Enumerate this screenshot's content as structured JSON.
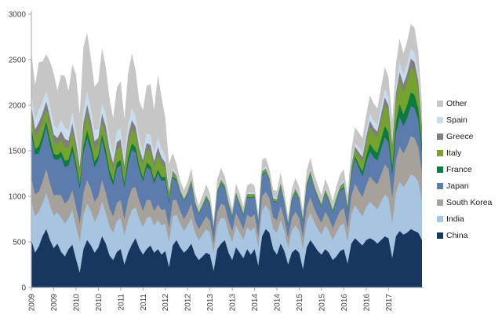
{
  "chart_data": {
    "type": "area",
    "stacked": true,
    "title": "",
    "xlabel": "",
    "ylabel": "",
    "ylim": [
      0,
      3000
    ],
    "y_ticks": [
      0,
      500,
      1000,
      1500,
      2000,
      2500,
      3000
    ],
    "x_tick_labels": [
      "2009",
      "2009",
      "2010",
      "2010",
      "2011",
      "2011",
      "2012",
      "2012",
      "2013",
      "2013",
      "2014",
      "2014",
      "2015",
      "2015",
      "2016",
      "2016",
      "2017"
    ],
    "x_tick_point_indices": [
      0,
      6,
      12,
      18,
      24,
      30,
      36,
      42,
      48,
      54,
      60,
      66,
      72,
      78,
      84,
      90,
      96
    ],
    "x_unit": "monthly points, Jan 2009 - Oct 2017",
    "grid": false,
    "legend_position": "right",
    "legend_labels_top_to_bottom": [
      "Other",
      "Spain",
      "Greece",
      "Italy",
      "France",
      "Japan",
      "South Korea",
      "India",
      "China"
    ],
    "series": [
      {
        "name": "China",
        "color": "#17375e",
        "values": [
          520,
          380,
          450,
          560,
          640,
          520,
          430,
          480,
          390,
          340,
          420,
          470,
          310,
          160,
          420,
          520,
          460,
          380,
          440,
          560,
          480,
          350,
          300,
          390,
          420,
          250,
          380,
          470,
          540,
          430,
          360,
          420,
          460,
          380,
          420,
          360,
          400,
          220,
          460,
          520,
          440,
          380,
          420,
          480,
          360,
          300,
          340,
          380,
          360,
          180,
          420,
          480,
          520,
          380,
          300,
          440,
          380,
          320,
          420,
          360,
          420,
          240,
          560,
          640,
          600,
          420,
          360,
          480,
          400,
          250,
          380,
          420,
          380,
          200,
          440,
          520,
          460,
          400,
          360,
          420,
          380,
          300,
          340,
          400,
          420,
          260,
          480,
          540,
          500,
          460,
          520,
          540,
          520,
          480,
          520,
          560,
          540,
          320,
          560,
          620,
          580,
          600,
          640,
          620,
          600,
          520
        ]
      },
      {
        "name": "India",
        "color": "#a7c5e0",
        "values": [
          420,
          400,
          380,
          360,
          400,
          380,
          360,
          340,
          380,
          360,
          340,
          380,
          360,
          340,
          380,
          400,
          380,
          340,
          360,
          380,
          340,
          320,
          300,
          340,
          340,
          320,
          360,
          380,
          340,
          320,
          300,
          340,
          320,
          300,
          320,
          320,
          300,
          280,
          320,
          280,
          260,
          240,
          260,
          280,
          240,
          220,
          240,
          260,
          240,
          200,
          260,
          280,
          240,
          220,
          200,
          240,
          220,
          200,
          240,
          260,
          240,
          200,
          280,
          260,
          240,
          220,
          240,
          260,
          220,
          180,
          240,
          260,
          240,
          220,
          280,
          300,
          260,
          240,
          220,
          260,
          240,
          220,
          260,
          280,
          280,
          240,
          320,
          360,
          340,
          320,
          360,
          400,
          380,
          380,
          420,
          460,
          440,
          380,
          480,
          540,
          520,
          560,
          600,
          600,
          560,
          430
        ]
      },
      {
        "name": "South Korea",
        "color": "#a6a29b",
        "values": [
          260,
          240,
          220,
          240,
          260,
          240,
          220,
          200,
          240,
          220,
          200,
          220,
          220,
          200,
          240,
          260,
          240,
          220,
          200,
          240,
          220,
          200,
          180,
          200,
          200,
          180,
          220,
          240,
          220,
          200,
          180,
          200,
          180,
          160,
          170,
          170,
          160,
          150,
          180,
          160,
          140,
          130,
          140,
          160,
          130,
          120,
          130,
          140,
          130,
          110,
          150,
          160,
          140,
          130,
          120,
          140,
          130,
          120,
          140,
          150,
          140,
          120,
          160,
          150,
          140,
          130,
          140,
          150,
          130,
          110,
          140,
          150,
          140,
          130,
          160,
          170,
          150,
          140,
          130,
          150,
          140,
          130,
          150,
          160,
          170,
          150,
          200,
          240,
          220,
          210,
          240,
          280,
          270,
          270,
          300,
          330,
          320,
          280,
          350,
          390,
          370,
          390,
          420,
          420,
          380,
          300
        ]
      },
      {
        "name": "Japan",
        "color": "#5b7cad",
        "values": [
          480,
          440,
          420,
          440,
          460,
          420,
          400,
          380,
          420,
          400,
          380,
          420,
          420,
          380,
          440,
          460,
          420,
          380,
          400,
          440,
          400,
          360,
          340,
          380,
          380,
          340,
          400,
          420,
          380,
          340,
          320,
          360,
          330,
          300,
          340,
          320,
          320,
          280,
          240,
          210,
          190,
          190,
          200,
          220,
          180,
          160,
          170,
          190,
          170,
          140,
          200,
          220,
          190,
          170,
          150,
          190,
          170,
          150,
          190,
          210,
          190,
          150,
          230,
          210,
          190,
          170,
          190,
          210,
          170,
          140,
          190,
          210,
          190,
          170,
          220,
          240,
          210,
          190,
          170,
          200,
          180,
          170,
          200,
          220,
          220,
          190,
          240,
          270,
          250,
          230,
          250,
          270,
          260,
          260,
          280,
          300,
          290,
          250,
          300,
          320,
          300,
          310,
          330,
          330,
          300,
          230
        ]
      },
      {
        "name": "France",
        "color": "#0d7a3e",
        "values": [
          70,
          60,
          80,
          70,
          60,
          70,
          60,
          50,
          60,
          70,
          60,
          70,
          60,
          50,
          70,
          80,
          70,
          60,
          50,
          60,
          70,
          60,
          50,
          60,
          60,
          50,
          60,
          70,
          60,
          50,
          40,
          50,
          45,
          40,
          45,
          40,
          35,
          25,
          18,
          12,
          10,
          8,
          8,
          10,
          8,
          6,
          8,
          10,
          8,
          6,
          10,
          10,
          8,
          8,
          6,
          8,
          8,
          6,
          8,
          10,
          8,
          6,
          10,
          10,
          8,
          8,
          8,
          10,
          8,
          6,
          8,
          10,
          10,
          8,
          12,
          12,
          10,
          10,
          8,
          10,
          10,
          8,
          10,
          12,
          15,
          12,
          20,
          30,
          40,
          50,
          70,
          90,
          85,
          85,
          100,
          120,
          110,
          90,
          120,
          140,
          130,
          140,
          150,
          145,
          120,
          85
        ]
      },
      {
        "name": "Italy",
        "color": "#76a22f",
        "values": [
          150,
          130,
          160,
          150,
          140,
          150,
          130,
          120,
          140,
          150,
          130,
          150,
          140,
          120,
          160,
          180,
          160,
          140,
          120,
          140,
          160,
          140,
          120,
          140,
          140,
          120,
          150,
          160,
          140,
          120,
          130,
          140,
          150,
          130,
          160,
          140,
          100,
          60,
          40,
          25,
          18,
          18,
          18,
          22,
          18,
          14,
          18,
          22,
          18,
          14,
          22,
          22,
          18,
          18,
          14,
          18,
          18,
          14,
          18,
          22,
          18,
          14,
          22,
          22,
          18,
          18,
          18,
          22,
          18,
          14,
          18,
          22,
          22,
          18,
          26,
          26,
          22,
          22,
          18,
          22,
          22,
          18,
          22,
          26,
          30,
          25,
          45,
          70,
          90,
          110,
          150,
          180,
          170,
          170,
          200,
          230,
          220,
          180,
          230,
          260,
          240,
          250,
          270,
          260,
          220,
          150
        ]
      },
      {
        "name": "Greece",
        "color": "#7f7f7f",
        "values": [
          90,
          80,
          100,
          90,
          80,
          90,
          80,
          70,
          85,
          90,
          80,
          90,
          85,
          70,
          95,
          105,
          95,
          85,
          70,
          85,
          95,
          85,
          70,
          85,
          85,
          70,
          90,
          95,
          85,
          70,
          65,
          75,
          80,
          70,
          85,
          75,
          55,
          35,
          25,
          18,
          13,
          10,
          10,
          13,
          10,
          8,
          10,
          13,
          10,
          8,
          13,
          13,
          10,
          10,
          8,
          10,
          10,
          8,
          10,
          13,
          10,
          8,
          13,
          13,
          10,
          10,
          10,
          13,
          10,
          8,
          10,
          13,
          13,
          10,
          15,
          15,
          13,
          13,
          10,
          13,
          13,
          10,
          13,
          15,
          18,
          15,
          25,
          35,
          45,
          50,
          60,
          70,
          68,
          65,
          75,
          85,
          80,
          65,
          85,
          95,
          90,
          95,
          100,
          98,
          85,
          60
        ]
      },
      {
        "name": "Spain",
        "color": "#c8dcee",
        "values": [
          130,
          110,
          140,
          130,
          120,
          130,
          110,
          100,
          120,
          130,
          110,
          130,
          120,
          100,
          135,
          150,
          135,
          120,
          100,
          120,
          135,
          120,
          100,
          120,
          120,
          100,
          130,
          135,
          120,
          100,
          90,
          105,
          110,
          95,
          115,
          100,
          75,
          48,
          32,
          22,
          16,
          14,
          14,
          18,
          14,
          11,
          14,
          18,
          14,
          11,
          18,
          18,
          14,
          14,
          11,
          14,
          14,
          11,
          14,
          18,
          14,
          11,
          18,
          18,
          14,
          14,
          14,
          18,
          14,
          11,
          14,
          18,
          18,
          14,
          20,
          20,
          18,
          18,
          14,
          18,
          18,
          14,
          18,
          20,
          24,
          20,
          32,
          45,
          55,
          60,
          70,
          80,
          78,
          75,
          85,
          95,
          90,
          75,
          95,
          105,
          100,
          105,
          110,
          108,
          95,
          70
        ]
      },
      {
        "name": "Other",
        "color": "#c6c6c6",
        "values": [
          460,
          380,
          520,
          440,
          400,
          480,
          560,
          420,
          500,
          560,
          440,
          520,
          620,
          480,
          700,
          640,
          560,
          480,
          520,
          600,
          520,
          440,
          400,
          480,
          520,
          420,
          560,
          600,
          500,
          420,
          460,
          520,
          560,
          480,
          680,
          560,
          420,
          260,
          160,
          110,
          90,
          80,
          90,
          110,
          80,
          60,
          80,
          100,
          80,
          60,
          100,
          110,
          80,
          80,
          60,
          80,
          80,
          60,
          80,
          100,
          80,
          60,
          110,
          100,
          80,
          80,
          80,
          100,
          80,
          60,
          80,
          100,
          90,
          70,
          110,
          120,
          100,
          90,
          80,
          100,
          90,
          80,
          100,
          110,
          120,
          100,
          140,
          170,
          160,
          150,
          170,
          200,
          190,
          180,
          210,
          240,
          220,
          180,
          230,
          260,
          240,
          250,
          270,
          270,
          230,
          160
        ]
      }
    ],
    "axis_color": "#a6a6a6",
    "tick_label_color": "#3f3f3f"
  }
}
